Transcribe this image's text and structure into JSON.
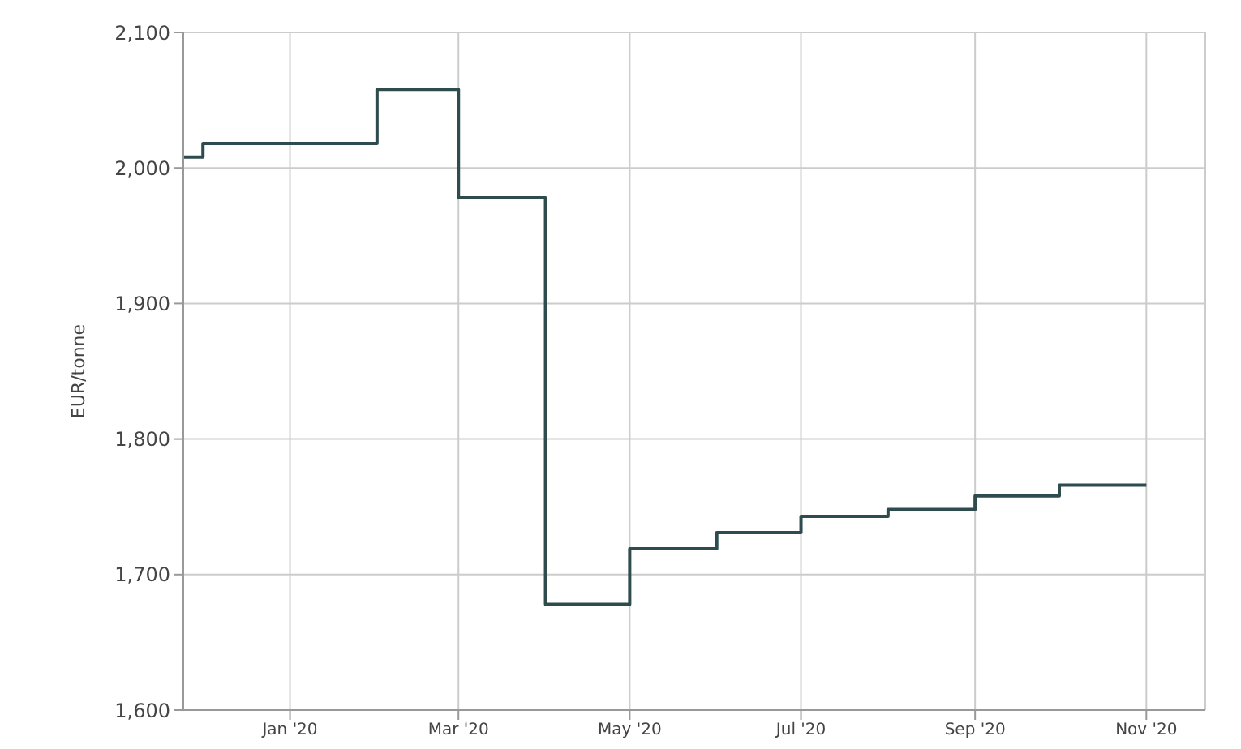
{
  "chart_data": {
    "type": "step",
    "ylabel": "EUR/tonne",
    "x": [
      "2019-11-24",
      "2019-12-01",
      "2020-02-01",
      "2020-03-01",
      "2020-04-01",
      "2020-05-01",
      "2020-06-01",
      "2020-07-01",
      "2020-08-01",
      "2020-09-01",
      "2020-10-01",
      "2020-11-01"
    ],
    "series": [
      {
        "color": "#2e4b4d",
        "values": [
          2008,
          2018,
          2058,
          1978,
          1678,
          1719,
          1731,
          1743,
          1748,
          1758,
          1766,
          1766
        ]
      }
    ],
    "xlim": [
      "2019-11-24",
      "2020-11-22"
    ],
    "xticks": [
      {
        "value": "2020-01-01",
        "label": "Jan '20"
      },
      {
        "value": "2020-03-01",
        "label": "Mar '20"
      },
      {
        "value": "2020-05-01",
        "label": "May '20"
      },
      {
        "value": "2020-07-01",
        "label": "Jul '20"
      },
      {
        "value": "2020-09-01",
        "label": "Sep '20"
      },
      {
        "value": "2020-11-01",
        "label": "Nov '20"
      }
    ],
    "ylim": [
      1600,
      2100
    ],
    "yticks": [
      {
        "value": 1600,
        "label": "1,600"
      },
      {
        "value": 1700,
        "label": "1,700"
      },
      {
        "value": 1800,
        "label": "1,800"
      },
      {
        "value": 1900,
        "label": "1,900"
      },
      {
        "value": 2000,
        "label": "2,000"
      },
      {
        "value": 2100,
        "label": "2,100"
      }
    ],
    "grid": true,
    "marker": "none"
  }
}
